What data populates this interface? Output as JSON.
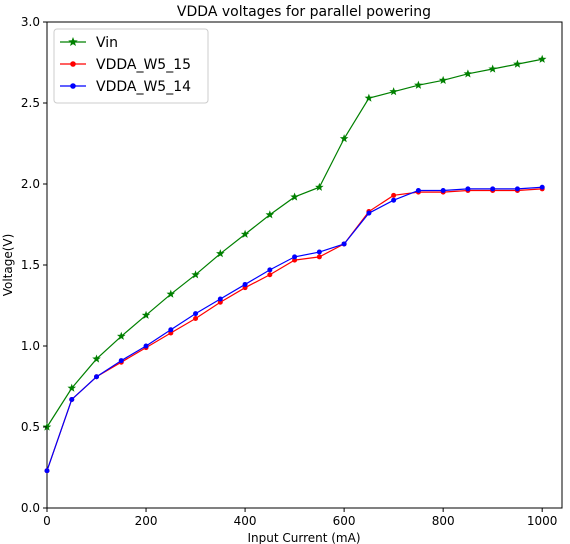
{
  "chart_data": {
    "type": "line",
    "title": "VDDA voltages for parallel powering",
    "xlabel": "Input Current (mA)",
    "ylabel": "Voltage(V)",
    "xlim": [
      0,
      1040
    ],
    "ylim": [
      0.0,
      3.0
    ],
    "xticks": [
      0,
      200,
      400,
      600,
      800,
      1000
    ],
    "yticks": [
      "0.0",
      "0.5",
      "1.0",
      "1.5",
      "2.0",
      "2.5",
      "3.0"
    ],
    "grid": false,
    "legend_position": "top-left",
    "x": [
      0,
      50,
      100,
      150,
      200,
      250,
      300,
      350,
      400,
      450,
      500,
      550,
      600,
      650,
      700,
      750,
      800,
      850,
      900,
      950,
      1000
    ],
    "series": [
      {
        "name": "Vin",
        "color": "#008000",
        "marker": "star",
        "values": [
          0.5,
          0.74,
          0.92,
          1.06,
          1.19,
          1.32,
          1.44,
          1.57,
          1.69,
          1.81,
          1.92,
          1.98,
          2.28,
          2.53,
          2.57,
          2.61,
          2.64,
          2.68,
          2.71,
          2.74,
          2.77
        ]
      },
      {
        "name": "VDDA_W5_15",
        "color": "#ff0000",
        "marker": "circle",
        "values": [
          0.23,
          0.67,
          0.81,
          0.9,
          0.99,
          1.08,
          1.17,
          1.27,
          1.36,
          1.44,
          1.53,
          1.55,
          1.63,
          1.83,
          1.93,
          1.95,
          1.95,
          1.96,
          1.96,
          1.96,
          1.97
        ]
      },
      {
        "name": "VDDA_W5_14",
        "color": "#0000ff",
        "marker": "circle",
        "values": [
          0.23,
          0.67,
          0.81,
          0.91,
          1.0,
          1.1,
          1.2,
          1.29,
          1.38,
          1.47,
          1.55,
          1.58,
          1.63,
          1.82,
          1.9,
          1.96,
          1.96,
          1.97,
          1.97,
          1.97,
          1.98
        ]
      }
    ]
  }
}
